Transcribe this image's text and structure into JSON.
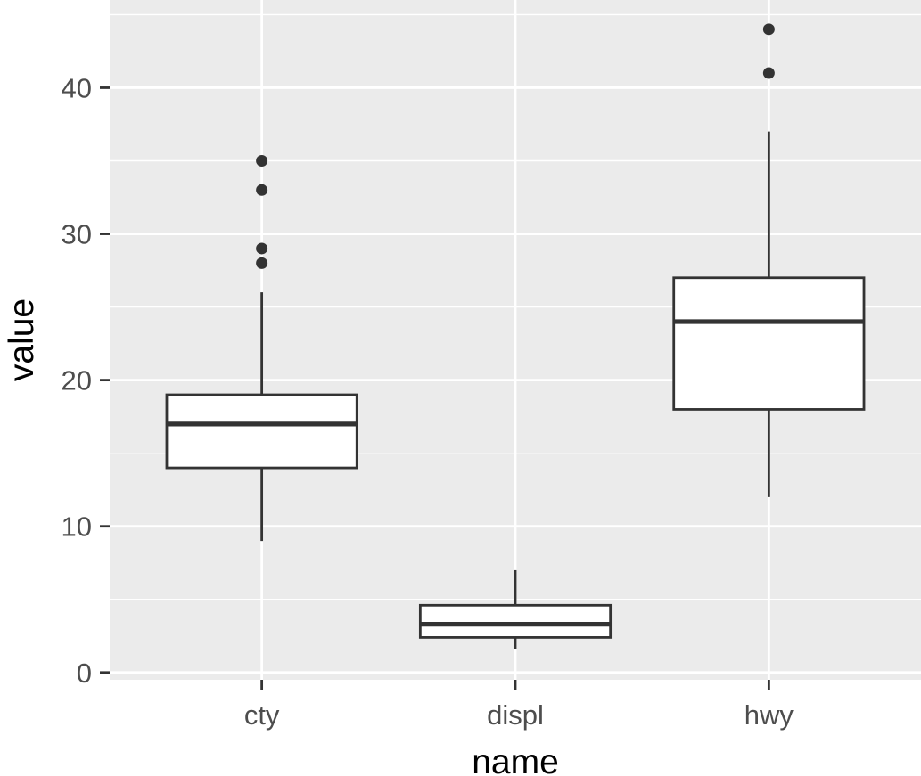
{
  "chart_data": {
    "type": "boxplot",
    "xlabel": "name",
    "ylabel": "value",
    "categories": [
      "cty",
      "displ",
      "hwy"
    ],
    "ylim": [
      -0.5,
      46
    ],
    "y_ticks": [
      0,
      10,
      20,
      30,
      40
    ],
    "y_tick_labels": [
      "0",
      "10",
      "20",
      "30",
      "40"
    ],
    "grid": true,
    "boxes": [
      {
        "category": "cty",
        "whisker_low": 9,
        "q1": 14,
        "median": 17,
        "q3": 19,
        "whisker_high": 26,
        "outliers": [
          28,
          29,
          33,
          35
        ]
      },
      {
        "category": "displ",
        "whisker_low": 1.6,
        "q1": 2.4,
        "median": 3.3,
        "q3": 4.6,
        "whisker_high": 7,
        "outliers": []
      },
      {
        "category": "hwy",
        "whisker_low": 12,
        "q1": 18,
        "median": 24,
        "q3": 27,
        "whisker_high": 37,
        "outliers": [
          41,
          44
        ]
      }
    ]
  },
  "colors": {
    "panel": "#ebebeb",
    "grid": "#ffffff",
    "box_fill": "#ffffff",
    "box_line": "#333333",
    "axis_ticks": "#333333",
    "tick_text": "#4d4d4d"
  }
}
